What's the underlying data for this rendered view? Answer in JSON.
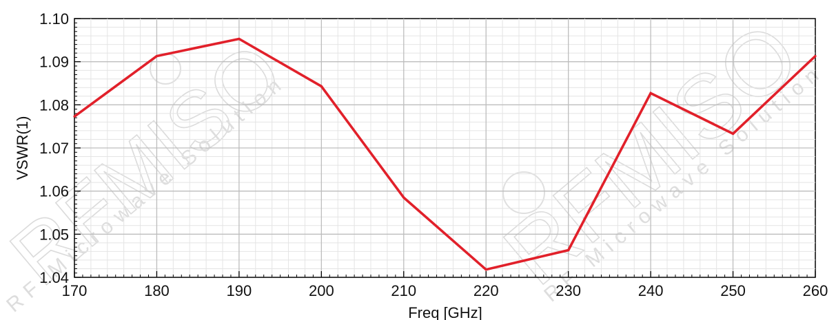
{
  "chart_data": {
    "type": "line",
    "title": "",
    "xlabel": "Freq [GHz]",
    "ylabel": "VSWR(1)",
    "xlim": [
      170,
      260
    ],
    "ylim": [
      1.04,
      1.1
    ],
    "xticks": [
      "170",
      "180",
      "190",
      "200",
      "210",
      "220",
      "230",
      "240",
      "250",
      "260"
    ],
    "yticks": [
      "1.04",
      "1.05",
      "1.06",
      "1.07",
      "1.08",
      "1.09",
      "1.10"
    ],
    "grid": true,
    "series": [
      {
        "x": [
          170,
          180,
          190,
          200,
          210,
          220,
          230,
          240,
          250,
          260
        ],
        "y": [
          1.0773,
          1.0913,
          1.0953,
          1.0843,
          1.0585,
          1.0418,
          1.0463,
          1.0827,
          1.0733,
          1.0913
        ],
        "color": "#e1202a"
      }
    ]
  },
  "watermark": {
    "brand": "RFMISO",
    "tagline": "RF Microwave Solution",
    "color": "#cfcfcf"
  }
}
